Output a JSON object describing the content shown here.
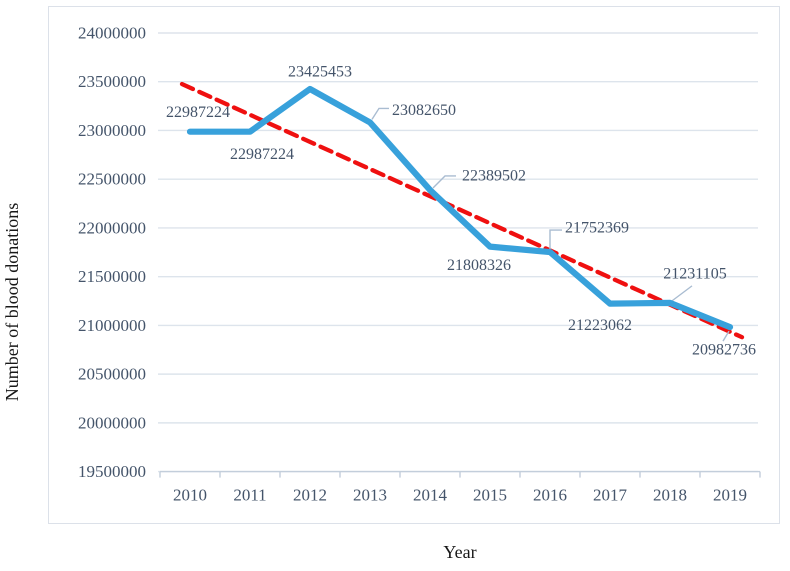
{
  "chart_data": {
    "type": "line",
    "title": "",
    "xlabel": "Year",
    "ylabel": "Number of blood donations",
    "categories": [
      "2010",
      "2011",
      "2012",
      "2013",
      "2014",
      "2015",
      "2016",
      "2017",
      "2018",
      "2019"
    ],
    "series": [
      {
        "name": "Number of blood donations",
        "color": "#38a1db",
        "values": [
          22987224,
          22987224,
          23425453,
          23082650,
          22389502,
          21808326,
          21752369,
          21223062,
          21231105,
          20982736
        ],
        "data_labels": [
          "22987224",
          "22987224",
          "23425453",
          "23082650",
          "22389502",
          "21808326",
          "21752369",
          "21223062",
          "21231105",
          "20982736"
        ],
        "label_offsets": [
          [
            8,
            -19
          ],
          [
            12,
            23
          ],
          [
            10,
            -17
          ],
          [
            54,
            -12
          ],
          [
            64,
            -14
          ],
          [
            -11,
            19
          ],
          [
            47,
            -24
          ],
          [
            -10,
            22
          ],
          [
            25,
            -29
          ],
          [
            -6,
            23
          ]
        ],
        "leaders": [
          null,
          null,
          null,
          [
            [
              2,
              -3
            ],
            [
              9,
              -14
            ],
            [
              19,
              -14
            ]
          ],
          [
            [
              3,
              -2
            ],
            [
              15,
              -14
            ],
            [
              26,
              -14
            ]
          ],
          null,
          [
            [
              0,
              -3
            ],
            [
              0,
              -22
            ],
            [
              12,
              -22
            ]
          ],
          null,
          [
            [
              2,
              -2
            ],
            [
              22,
              -17
            ]
          ],
          [
            [
              -1,
              4
            ],
            [
              -7,
              14
            ]
          ]
        ]
      }
    ],
    "trendline": {
      "type": "linear",
      "style": "dashed",
      "color": "#ef1010",
      "start_value": 23439252,
      "end_value": 20934678
    },
    "y_ticks": [
      "24000000",
      "23500000",
      "23000000",
      "22500000",
      "22000000",
      "21500000",
      "21000000",
      "20500000",
      "20000000",
      "19500000"
    ],
    "ylim": [
      19500000,
      24000000
    ],
    "grid": true,
    "legend": "none"
  },
  "colors": {
    "grid": "#dde4ec",
    "axis_line": "#c3cedb",
    "tick_text": "#44546a",
    "data_label_text": "#44546a",
    "leader_line": "#a9bcd1",
    "frame_border": "#dce1e9",
    "background": "#ffffff",
    "axis_title_text": "#181818"
  }
}
